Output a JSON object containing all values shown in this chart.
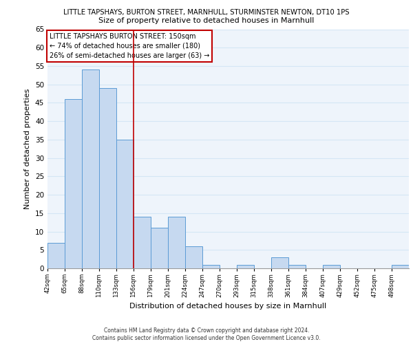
{
  "title_top": "LITTLE TAPSHAYS, BURTON STREET, MARNHULL, STURMINSTER NEWTON, DT10 1PS",
  "title_sub": "Size of property relative to detached houses in Marnhull",
  "xlabel": "Distribution of detached houses by size in Marnhull",
  "ylabel": "Number of detached properties",
  "bin_labels": [
    "42sqm",
    "65sqm",
    "88sqm",
    "110sqm",
    "133sqm",
    "156sqm",
    "179sqm",
    "201sqm",
    "224sqm",
    "247sqm",
    "270sqm",
    "293sqm",
    "315sqm",
    "338sqm",
    "361sqm",
    "384sqm",
    "407sqm",
    "429sqm",
    "452sqm",
    "475sqm",
    "498sqm"
  ],
  "bar_heights": [
    7,
    46,
    54,
    49,
    35,
    14,
    11,
    14,
    6,
    1,
    0,
    1,
    0,
    3,
    1,
    0,
    1,
    0,
    0,
    0,
    1
  ],
  "bar_color": "#c6d9f0",
  "bar_edge_color": "#5b9bd5",
  "bar_width": 1.0,
  "vline_x": 5.0,
  "vline_color": "#c00000",
  "ylim": [
    0,
    65
  ],
  "yticks": [
    0,
    5,
    10,
    15,
    20,
    25,
    30,
    35,
    40,
    45,
    50,
    55,
    60,
    65
  ],
  "annotation_title": "LITTLE TAPSHAYS BURTON STREET: 150sqm",
  "annotation_line1": "← 74% of detached houses are smaller (180)",
  "annotation_line2": "26% of semi-detached houses are larger (63) →",
  "annotation_box_color": "#ffffff",
  "annotation_box_edge": "#c00000",
  "footer1": "Contains HM Land Registry data © Crown copyright and database right 2024.",
  "footer2": "Contains public sector information licensed under the Open Government Licence v3.0.",
  "grid_color": "#d4e6f5",
  "background_color": "#eef4fb"
}
